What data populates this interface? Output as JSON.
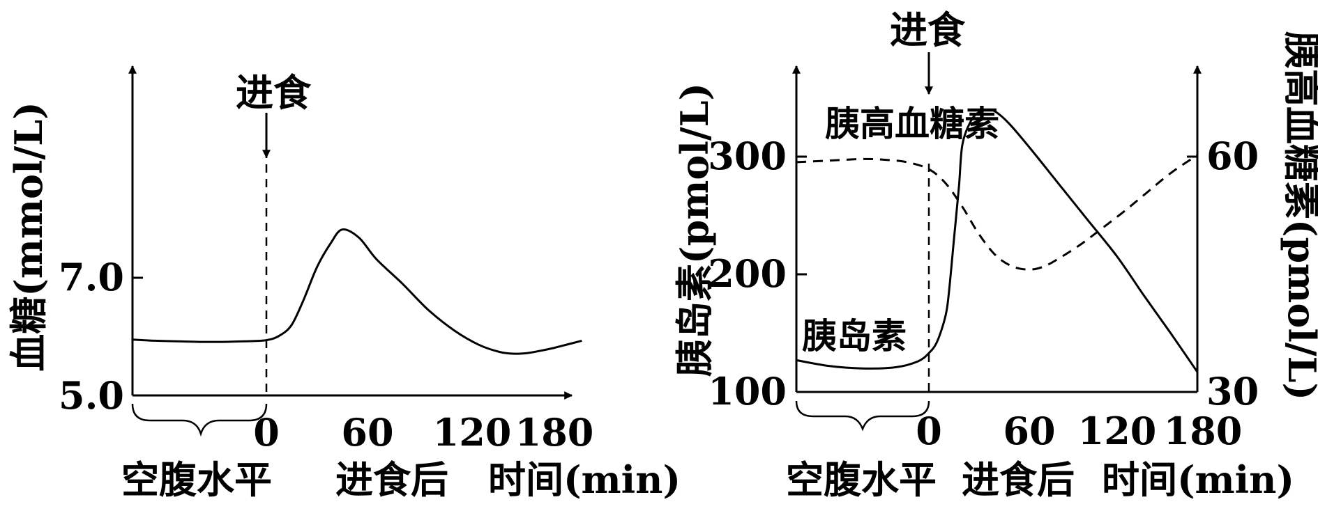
{
  "chart_data": [
    {
      "type": "line",
      "title": "",
      "ylabel": "血糖(mmol/L)",
      "xlabel": "时间(min)",
      "x_segment_labels": [
        "空腹水平",
        "进食后"
      ],
      "event_label": "进食",
      "xticks": [
        "0",
        "60",
        "120",
        "180"
      ],
      "yticks": [
        "5.0",
        "7.0"
      ],
      "ylim": [
        5.0,
        9.0
      ],
      "series": [
        {
          "style": "solid",
          "x": [
            -60,
            -50,
            -40,
            -30,
            -20,
            -10,
            0,
            8,
            15,
            22,
            30,
            38,
            45,
            55,
            65,
            80,
            95,
            110,
            125,
            140,
            150,
            160,
            170,
            180,
            190,
            200
          ],
          "y": [
            5.95,
            5.93,
            5.92,
            5.91,
            5.91,
            5.92,
            5.94,
            6.02,
            6.2,
            6.62,
            7.18,
            7.58,
            7.82,
            7.68,
            7.32,
            6.9,
            6.45,
            6.1,
            5.86,
            5.74,
            5.71,
            5.72,
            5.76,
            5.81,
            5.87,
            5.93
          ]
        }
      ]
    },
    {
      "type": "line",
      "title": "",
      "ylabel": "胰岛素(pmol/L)",
      "ylabel_right": "胰高血糖素(pmol/L)",
      "xlabel": "时间(min)",
      "x_segment_labels": [
        "空腹水平",
        "进食后"
      ],
      "event_label": "进食",
      "xticks": [
        "0",
        "60",
        "120",
        "180"
      ],
      "yticks_left": [
        "100",
        "200",
        "300"
      ],
      "yticks_right": [
        "30",
        "60"
      ],
      "ylim_left": [
        100,
        400
      ],
      "ylim_right": [
        30,
        66
      ],
      "annotations": [
        "胰高血糖素",
        "胰岛素"
      ],
      "series": [
        {
          "name": "胰岛素",
          "style": "solid",
          "axis": "left",
          "x": [
            -60,
            -45,
            -30,
            -15,
            -5,
            0,
            5,
            10,
            12,
            15,
            18,
            20,
            25,
            30,
            35,
            40,
            48,
            60,
            80,
            100,
            120,
            140,
            160,
            180
          ],
          "y": [
            127,
            122,
            120,
            121,
            126,
            133,
            143,
            165,
            185,
            230,
            275,
            310,
            330,
            338,
            340,
            338,
            328,
            308,
            277,
            246,
            215,
            182,
            150,
            117
          ]
        },
        {
          "name": "胰高血糖素",
          "style": "dashed",
          "axis": "right",
          "x": [
            -60,
            -45,
            -30,
            -20,
            -10,
            0,
            10,
            20,
            30,
            40,
            50,
            60,
            70,
            80,
            95,
            110,
            125,
            140,
            160,
            180
          ],
          "y": [
            59.3,
            59.5,
            59.7,
            59.6,
            59.3,
            58.4,
            56.6,
            53.6,
            50.1,
            47.4,
            46.0,
            45.6,
            46.0,
            47.0,
            48.8,
            50.9,
            53.0,
            55.1,
            57.9,
            60.2
          ]
        }
      ]
    }
  ]
}
